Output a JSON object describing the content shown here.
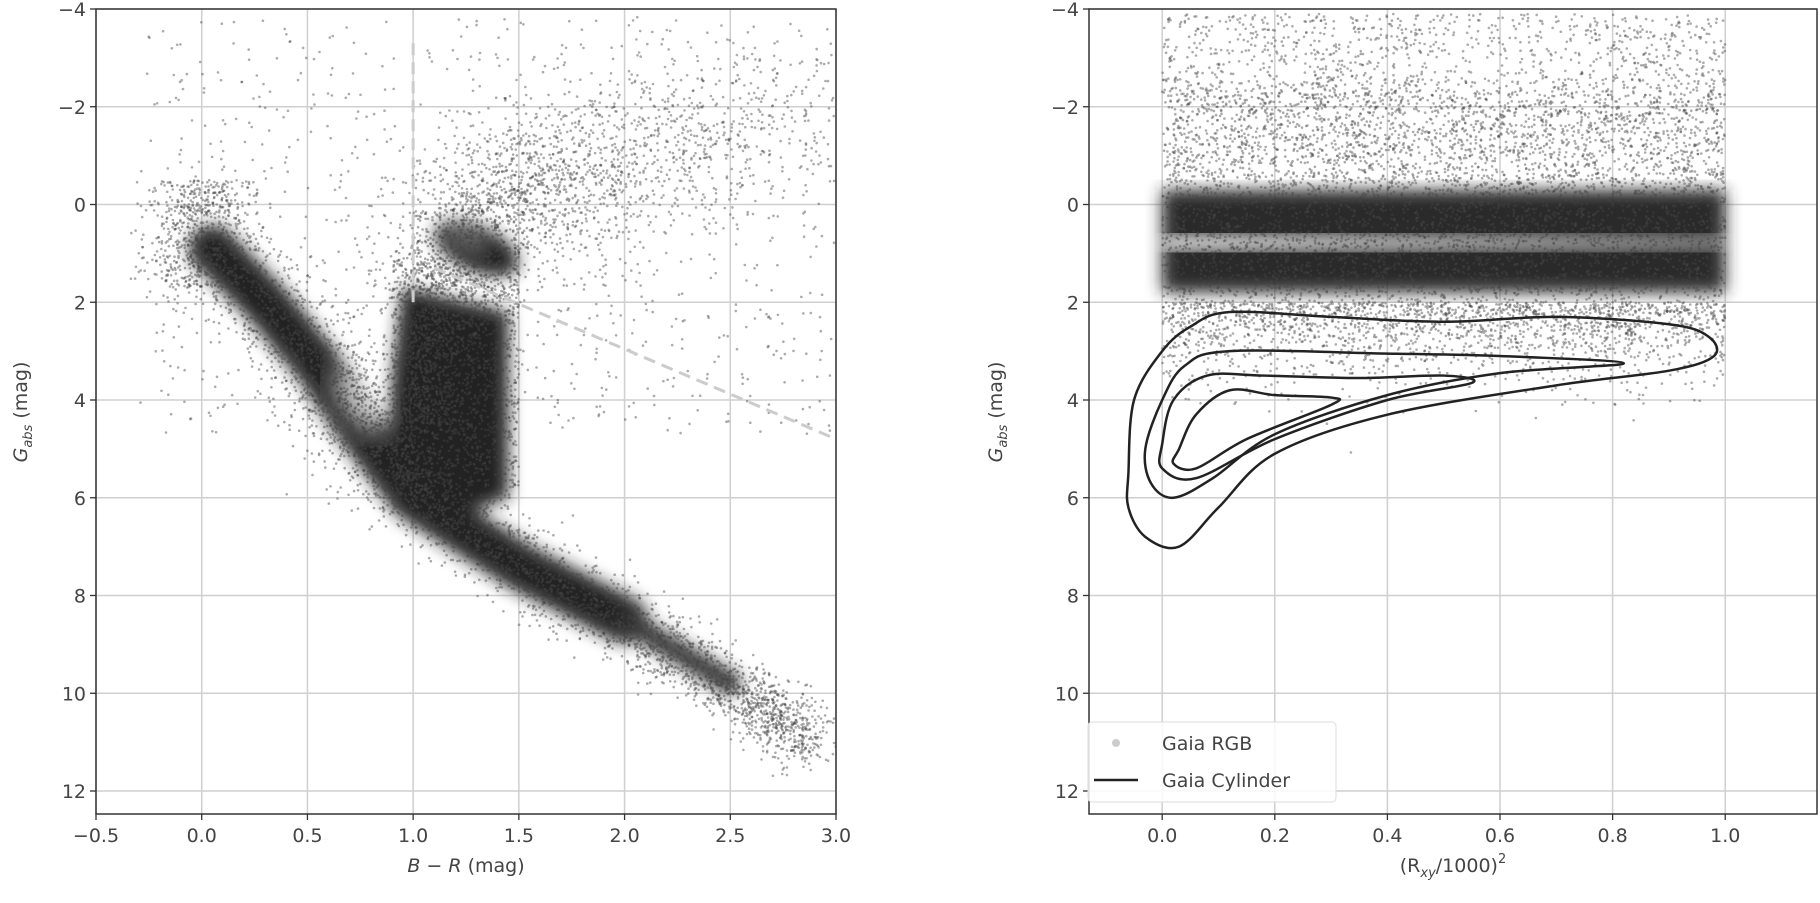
{
  "chart_data": [
    {
      "type": "scatter",
      "xlabel_main": "B − R",
      "xlabel_unit": " (mag)",
      "ylabel_main": "G",
      "ylabel_sub": "abs",
      "ylabel_unit": " (mag)",
      "xlim": [
        -0.5,
        3.0
      ],
      "ylim": [
        12.47,
        -4
      ],
      "y_inverted": true,
      "grid": true,
      "xticks": [
        "−0.5",
        "0.0",
        "0.5",
        "1.0",
        "1.5",
        "2.0",
        "2.5",
        "3.0"
      ],
      "xtick_values": [
        -0.5,
        0.0,
        0.5,
        1.0,
        1.5,
        2.0,
        2.5,
        3.0
      ],
      "yticks": [
        "−4",
        "−2",
        "0",
        "2",
        "4",
        "6",
        "8",
        "10",
        "12"
      ],
      "ytick_values": [
        -4,
        -2,
        0,
        2,
        4,
        6,
        8,
        10,
        12
      ],
      "point_color": "#555555",
      "density_peak": {
        "x": 0.75,
        "y": 4.0
      },
      "red_clump": {
        "x": 1.25,
        "y": 0.7
      },
      "main_sequence_ridge": [
        [
          0.0,
          0.6
        ],
        [
          0.3,
          2.0
        ],
        [
          0.55,
          3.3
        ],
        [
          0.75,
          4.6
        ],
        [
          1.0,
          6.0
        ],
        [
          1.5,
          7.4
        ],
        [
          2.0,
          8.6
        ],
        [
          2.5,
          9.9
        ],
        [
          2.9,
          11.0
        ]
      ],
      "giant_branch_ridge": [
        [
          1.0,
          5.0
        ],
        [
          1.1,
          2.5
        ],
        [
          1.25,
          0.5
        ],
        [
          1.5,
          -0.2
        ],
        [
          2.0,
          -1.0
        ],
        [
          2.8,
          -2.0
        ]
      ],
      "dashed_lines": [
        {
          "color": "#cccccc",
          "points": [
            [
              1.1,
              1.3
            ],
            [
              3.0,
              4.8
            ]
          ]
        },
        {
          "color": "#cccccc",
          "points": [
            [
              1.0,
              -3.3
            ],
            [
              1.0,
              2.0
            ]
          ]
        }
      ]
    },
    {
      "type": "scatter",
      "xlabel_main": "(R",
      "xlabel_sub": "xy",
      "xlabel_rest": "/1000)",
      "xlabel_sup": "2",
      "ylabel_main": "G",
      "ylabel_sub": "abs",
      "ylabel_unit": " (mag)",
      "xlim": [
        -0.13,
        1.163
      ],
      "ylim": [
        12.47,
        -4
      ],
      "y_inverted": true,
      "grid": true,
      "xticks": [
        "0.0",
        "0.2",
        "0.4",
        "0.6",
        "0.8",
        "1.0"
      ],
      "xtick_values": [
        0.0,
        0.2,
        0.4,
        0.6,
        0.8,
        1.0
      ],
      "yticks": [
        "−4",
        "−2",
        "0",
        "2",
        "4",
        "6",
        "8",
        "10",
        "12"
      ],
      "ytick_values": [
        -4,
        -2,
        0,
        2,
        4,
        6,
        8,
        10,
        12
      ],
      "legend_position": "lower-left",
      "series": [
        {
          "name": "Gaia RGB",
          "kind": "scatter",
          "color": "#555555",
          "x_range": [
            0,
            1
          ],
          "dense_band": [
            -0.3,
            1.8
          ],
          "bright_streak_y": 0.8
        },
        {
          "name": "Gaia Cylinder",
          "kind": "kde-contour",
          "color": "#222222",
          "contours": [
            [
              [
                -0.06,
                5.5
              ],
              [
                -0.05,
                4.0
              ],
              [
                0.0,
                3.0
              ],
              [
                0.05,
                2.5
              ],
              [
                0.12,
                2.2
              ],
              [
                0.3,
                2.3
              ],
              [
                0.5,
                2.4
              ],
              [
                0.7,
                2.3
              ],
              [
                0.9,
                2.45
              ],
              [
                0.97,
                2.7
              ],
              [
                0.98,
                3.1
              ],
              [
                0.9,
                3.4
              ],
              [
                0.7,
                3.7
              ],
              [
                0.4,
                4.3
              ],
              [
                0.2,
                5.1
              ],
              [
                0.1,
                6.2
              ],
              [
                0.03,
                7.0
              ],
              [
                -0.03,
                6.8
              ],
              [
                -0.06,
                6.2
              ]
            ],
            [
              [
                -0.03,
                5.0
              ],
              [
                0.0,
                4.0
              ],
              [
                0.04,
                3.3
              ],
              [
                0.12,
                3.0
              ],
              [
                0.4,
                3.05
              ],
              [
                0.6,
                3.1
              ],
              [
                0.82,
                3.25
              ],
              [
                0.6,
                3.45
              ],
              [
                0.4,
                3.9
              ],
              [
                0.2,
                4.7
              ],
              [
                0.09,
                5.6
              ],
              [
                0.02,
                6.0
              ],
              [
                -0.02,
                5.7
              ]
            ],
            [
              [
                0.0,
                4.9
              ],
              [
                0.02,
                4.0
              ],
              [
                0.08,
                3.5
              ],
              [
                0.18,
                3.5
              ],
              [
                0.35,
                3.55
              ],
              [
                0.5,
                3.5
              ],
              [
                0.55,
                3.65
              ],
              [
                0.4,
                4.0
              ],
              [
                0.2,
                4.8
              ],
              [
                0.06,
                5.6
              ],
              [
                0.0,
                5.4
              ]
            ],
            [
              [
                0.03,
                5.0
              ],
              [
                0.06,
                4.3
              ],
              [
                0.12,
                3.8
              ],
              [
                0.2,
                3.9
              ],
              [
                0.3,
                3.95
              ],
              [
                0.3,
                4.1
              ],
              [
                0.15,
                4.8
              ],
              [
                0.06,
                5.4
              ],
              [
                0.02,
                5.3
              ]
            ]
          ]
        }
      ]
    }
  ]
}
